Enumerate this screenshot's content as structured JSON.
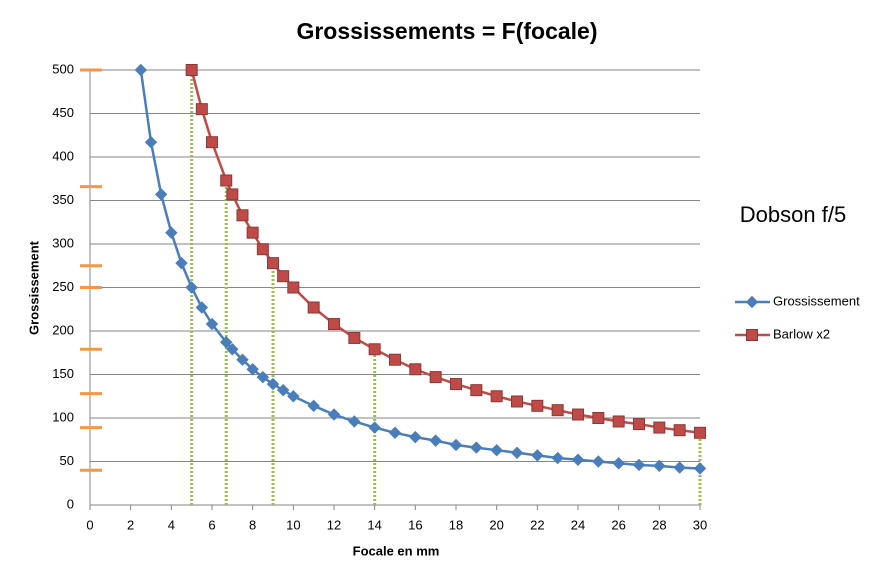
{
  "chart_data": {
    "type": "line",
    "title": "Grossissements = F(focale)",
    "annotation": "Dobson f/5",
    "x_label": "Focale en mm",
    "y_label": "Grossissement",
    "x": [
      2.5,
      3,
      3.5,
      4,
      4.5,
      5,
      5.5,
      6,
      6.7,
      7,
      7.5,
      8,
      8.5,
      9,
      9.5,
      10,
      11,
      12,
      13,
      14,
      15,
      16,
      17,
      18,
      19,
      20,
      21,
      22,
      23,
      24,
      25,
      26,
      27,
      28,
      29,
      30
    ],
    "series": [
      {
        "name": "Grossissement",
        "color": "#4a7ebb",
        "marker": "diamond",
        "values": [
          500,
          417,
          357,
          313,
          278,
          250,
          227,
          208,
          187,
          179,
          167,
          156,
          147,
          139,
          132,
          125,
          114,
          104,
          96,
          89,
          83,
          78,
          74,
          69,
          66,
          63,
          60,
          57,
          54,
          52,
          50,
          48,
          46,
          45,
          43,
          42
        ]
      },
      {
        "name": "Barlow x2",
        "color": "#be4b48",
        "marker": "square",
        "values": [
          null,
          null,
          null,
          null,
          null,
          500,
          455,
          417,
          373,
          357,
          333,
          313,
          294,
          278,
          263,
          250,
          227,
          208,
          192,
          179,
          167,
          156,
          147,
          139,
          132,
          125,
          119,
          114,
          109,
          104,
          100,
          96,
          93,
          89,
          86,
          83
        ]
      }
    ],
    "guide_x": [
      5,
      6.7,
      9,
      14,
      30
    ],
    "guide_color": "#9bbb59",
    "eyepiece_marks": [
      500,
      366,
      275,
      250,
      179,
      128,
      89,
      40
    ],
    "eyepiece_color": "#f79646",
    "xlim": [
      0,
      30
    ],
    "xticks": [
      0,
      2,
      4,
      6,
      8,
      10,
      12,
      14,
      16,
      18,
      20,
      22,
      24,
      26,
      28,
      30
    ],
    "ylim": [
      0,
      500
    ],
    "yticks": [
      0,
      50,
      100,
      150,
      200,
      250,
      300,
      350,
      400,
      450,
      500
    ],
    "grid": true,
    "legend": "right"
  }
}
